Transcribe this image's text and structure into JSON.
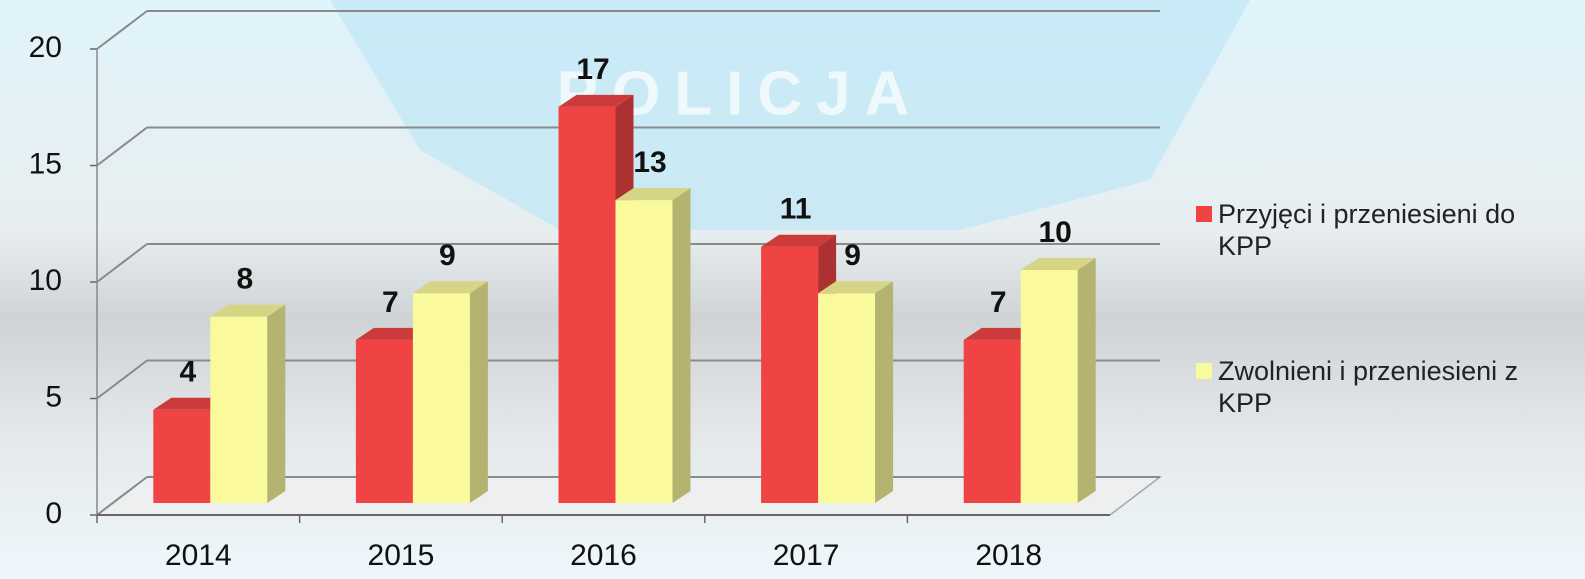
{
  "chart_data": {
    "type": "bar3d",
    "watermark": "POLICJA",
    "categories": [
      "2014",
      "2015",
      "2016",
      "2017",
      "2018"
    ],
    "series": [
      {
        "name": "Przyjęci i przeniesieni do KPP",
        "color": "#f04444",
        "values": [
          4,
          7,
          17,
          11,
          7
        ]
      },
      {
        "name": "Zwolnieni i przeniesieni z KPP",
        "color": "#fafa9c",
        "values": [
          8,
          9,
          13,
          9,
          10
        ]
      }
    ],
    "ylim": [
      0,
      20
    ],
    "yticks": [
      0,
      5,
      10,
      15,
      20
    ],
    "grid": true,
    "legend": "right"
  }
}
